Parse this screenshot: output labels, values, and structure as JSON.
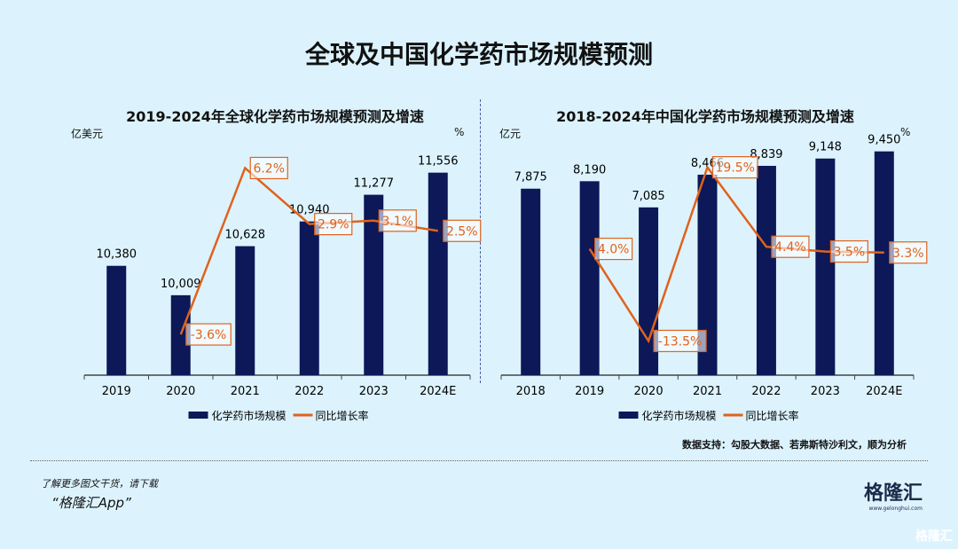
{
  "title": "全球及中国化学药市场规模预测",
  "colors": {
    "bar": "#0c1858",
    "line": "#e0621c",
    "background": "#dcf3fd"
  },
  "chart_data": [
    {
      "type": "bar+line",
      "title": "2019-2024年全球化学药市场规模预测及增速",
      "ylabel": "亿美元",
      "y2label": "%",
      "categories": [
        "2019",
        "2020",
        "2021",
        "2022",
        "2023",
        "2024E"
      ],
      "series": [
        {
          "name": "化学药市场规模",
          "type": "bar",
          "values": [
            10380,
            10009,
            10628,
            10940,
            11277,
            11556
          ],
          "labels": [
            "10,380",
            "10,009",
            "10,628",
            "10,940",
            "11,277",
            "11,556"
          ]
        },
        {
          "name": "同比增长率",
          "type": "line",
          "values": [
            null,
            -3.6,
            6.2,
            2.9,
            3.1,
            2.5
          ],
          "labels": [
            "",
            "-3.6%",
            "6.2%",
            "2.9%",
            "3.1%",
            "2.5%"
          ]
        }
      ],
      "ylim": [
        9000,
        12000
      ],
      "y2lim": [
        -6,
        8
      ],
      "legend": "bottom"
    },
    {
      "type": "bar+line",
      "title": "2018-2024年中国化学药市场规模预测及增速",
      "ylabel": "亿元",
      "y2label": "%",
      "categories": [
        "2018",
        "2019",
        "2020",
        "2021",
        "2022",
        "2023",
        "2024E"
      ],
      "series": [
        {
          "name": "化学药市场规模",
          "type": "bar",
          "values": [
            7875,
            8190,
            7085,
            8466,
            8839,
            9148,
            9450
          ],
          "labels": [
            "7,875",
            "8,190",
            "7,085",
            "8,466",
            "8,839",
            "9,148",
            "9,450"
          ]
        },
        {
          "name": "同比增长率",
          "type": "line",
          "values": [
            null,
            4.0,
            -13.5,
            19.5,
            4.4,
            3.5,
            3.3
          ],
          "labels": [
            "",
            "4.0%",
            "-13.5%",
            "19.5%",
            "4.4%",
            "3.5%",
            "3.3%"
          ]
        }
      ],
      "ylim": [
        0,
        10000
      ],
      "y2lim": [
        -20,
        25
      ],
      "legend": "bottom"
    }
  ],
  "source": "数据支持：勾股大数据、若弗斯特沙利文，顺为分析",
  "promo": {
    "line1": "了解更多图文干货，请下载",
    "line2": "“格隆汇App”"
  },
  "logo": {
    "name": "格隆汇",
    "url": "www.gelonghui.com"
  },
  "watermark": "格隆汇"
}
